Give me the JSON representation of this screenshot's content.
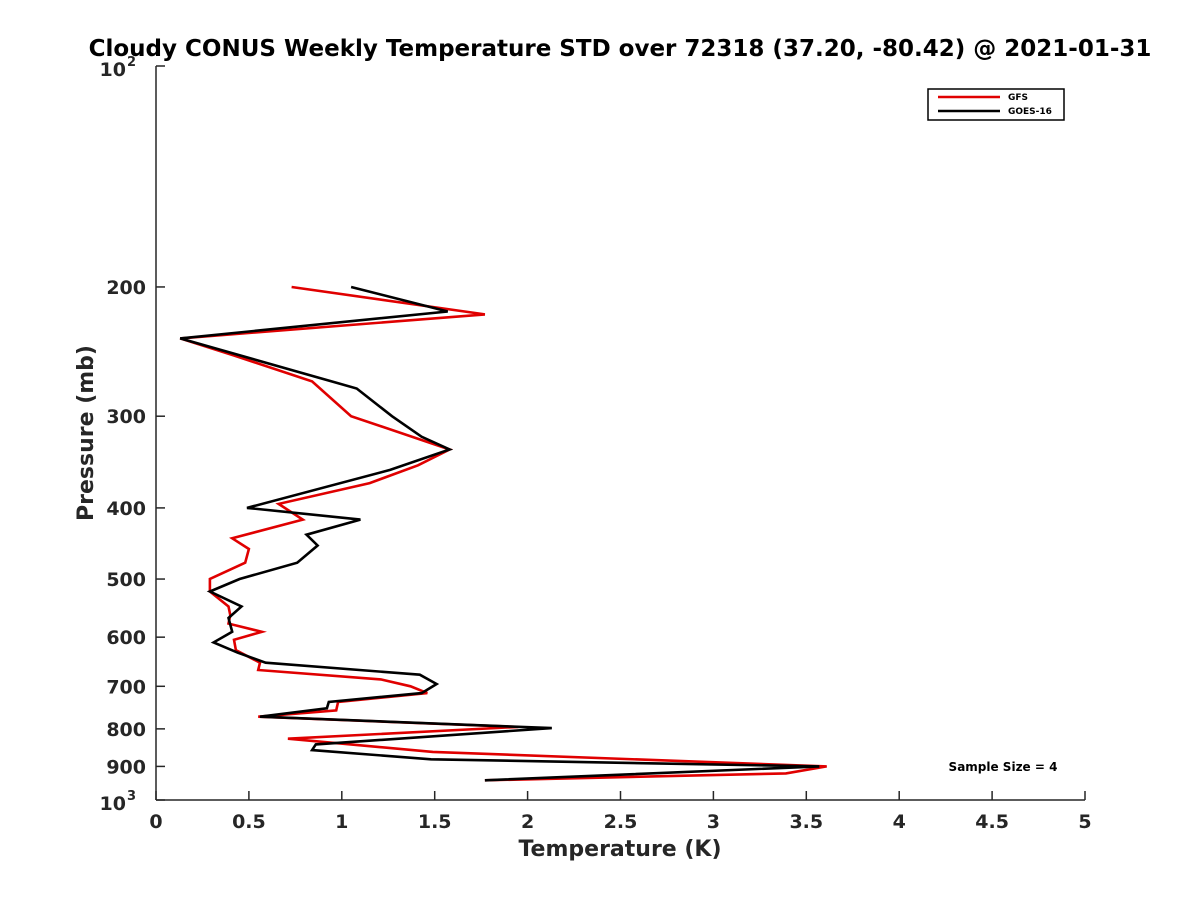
{
  "chart_data": {
    "type": "line",
    "title": "Cloudy CONUS Weekly Temperature STD over 72318 (37.20, -80.42) @ 2021-01-31",
    "xlabel": "Temperature (K)",
    "ylabel": "Pressure (mb)",
    "xlim": [
      0,
      5
    ],
    "ylim": [
      100,
      1000
    ],
    "yscale": "log",
    "y_reversed": true,
    "x_ticks": [
      0,
      0.5,
      1,
      1.5,
      2,
      2.5,
      3,
      3.5,
      4,
      4.5,
      5
    ],
    "x_tick_labels": [
      "0",
      "0.5",
      "1",
      "1.5",
      "2",
      "2.5",
      "3",
      "3.5",
      "4",
      "4.5",
      "5"
    ],
    "y_ticks": [
      200,
      300,
      400,
      500,
      600,
      700,
      800,
      900
    ],
    "y_tick_labels": [
      "200",
      "300",
      "400",
      "500",
      "600",
      "700",
      "800",
      "900"
    ],
    "y_edge_labels": [
      {
        "value": 100,
        "base": "10",
        "exp": "2"
      },
      {
        "value": 1000,
        "base": "10",
        "exp": "3"
      }
    ],
    "legend_position": "top-right",
    "annotation": "Sample Size = 4",
    "series": [
      {
        "name": "GFS",
        "color": "#e00000",
        "x": [
          0.73,
          1.77,
          0.13,
          0.42,
          0.84,
          1.05,
          1.58,
          1.41,
          1.15,
          0.66,
          0.79,
          0.41,
          0.5,
          0.48,
          0.29,
          0.29,
          0.39,
          0.4,
          0.39,
          0.57,
          0.42,
          0.43,
          0.56,
          0.55,
          1.21,
          1.37,
          1.46,
          0.98,
          0.97,
          0.55,
          1.95,
          0.71,
          1.49,
          3.61,
          3.39,
          1.77
        ],
        "y": [
          200,
          218,
          235,
          248,
          269,
          300,
          333,
          350,
          370,
          395,
          415,
          440,
          455,
          475,
          500,
          520,
          545,
          560,
          575,
          590,
          605,
          625,
          650,
          665,
          685,
          700,
          715,
          735,
          755,
          770,
          795,
          825,
          860,
          900,
          920,
          940
        ]
      },
      {
        "name": "GOES-16",
        "color": "#000000",
        "x": [
          1.05,
          1.57,
          0.13,
          1.08,
          1.27,
          1.43,
          1.58,
          1.26,
          0.49,
          1.1,
          0.81,
          0.87,
          0.76,
          0.45,
          0.29,
          0.46,
          0.39,
          0.41,
          0.31,
          0.44,
          0.59,
          1.42,
          1.51,
          1.43,
          0.93,
          0.92,
          0.56,
          2.13,
          0.86,
          0.84,
          1.48,
          3.57,
          1.77
        ],
        "y": [
          200,
          216,
          235,
          275,
          300,
          320,
          333,
          355,
          400,
          415,
          435,
          450,
          475,
          500,
          520,
          545,
          565,
          590,
          610,
          630,
          650,
          675,
          695,
          715,
          735,
          750,
          770,
          798,
          840,
          855,
          880,
          900,
          940
        ]
      }
    ]
  }
}
